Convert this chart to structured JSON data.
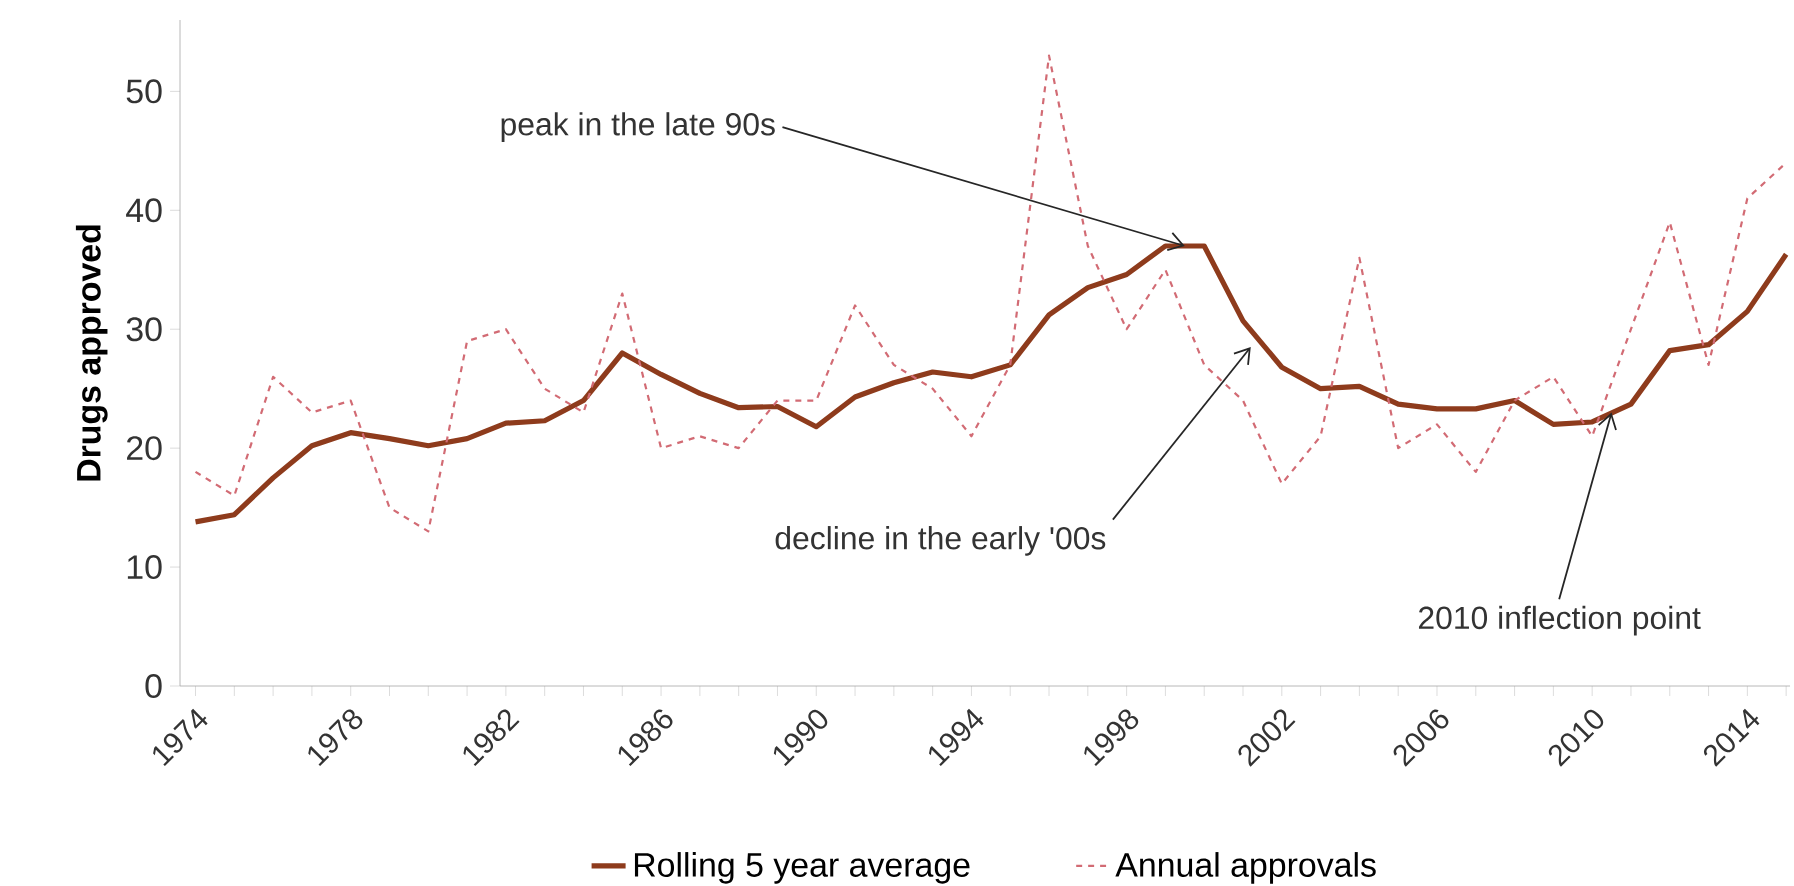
{
  "chart_data": {
    "type": "line",
    "ylabel": "Drugs approved",
    "legend": "bottom",
    "x": [
      1974,
      1975,
      1976,
      1977,
      1978,
      1979,
      1980,
      1981,
      1982,
      1983,
      1984,
      1985,
      1986,
      1987,
      1988,
      1989,
      1990,
      1991,
      1992,
      1993,
      1994,
      1995,
      1996,
      1997,
      1998,
      1999,
      2000,
      2001,
      2002,
      2003,
      2004,
      2005,
      2006,
      2007,
      2008,
      2009,
      2010,
      2011,
      2012,
      2013,
      2014,
      2015
    ],
    "series": [
      {
        "name": "Rolling 5 year average",
        "color": "#8e3b1c",
        "line_style": "solid",
        "values": [
          13.8,
          14.4,
          17.5,
          20.2,
          21.3,
          20.8,
          20.2,
          20.8,
          22.1,
          22.3,
          24,
          28,
          26.2,
          24.6,
          23.4,
          23.5,
          21.8,
          24.3,
          25.5,
          26.4,
          26,
          27,
          31.2,
          33.5,
          34.6,
          37,
          37,
          30.7,
          26.8,
          25,
          25.2,
          23.7,
          23.3,
          23.3,
          24,
          22,
          22.2,
          23.7,
          28.2,
          28.7,
          31.5,
          36.3
        ]
      },
      {
        "name": "Annual approvals",
        "color": "#d26b74",
        "line_style": "dashed",
        "values": [
          18,
          16,
          26,
          23,
          24,
          15,
          13,
          29,
          30,
          25,
          23,
          33,
          20,
          21,
          20,
          24,
          24,
          32,
          27,
          25,
          21,
          27,
          53,
          37,
          30,
          35,
          27,
          24,
          17,
          21,
          36,
          20,
          22,
          18,
          24,
          26,
          21,
          30,
          39,
          27,
          41,
          44
        ]
      }
    ],
    "xlim": [
      1973.6,
      2015.1
    ],
    "ylim": [
      0,
      56
    ],
    "xticks": [
      1974,
      {
        "value": 1975,
        "label": null
      },
      {
        "value": 1976,
        "label": null
      },
      {
        "value": 1977,
        "label": null
      },
      1978,
      {
        "value": 1979,
        "label": null
      },
      {
        "value": 1980,
        "label": null
      },
      {
        "value": 1981,
        "label": null
      },
      1982,
      {
        "value": 1983,
        "label": null
      },
      {
        "value": 1984,
        "label": null
      },
      {
        "value": 1985,
        "label": null
      },
      1986,
      {
        "value": 1987,
        "label": null
      },
      {
        "value": 1988,
        "label": null
      },
      {
        "value": 1989,
        "label": null
      },
      1990,
      {
        "value": 1991,
        "label": null
      },
      {
        "value": 1992,
        "label": null
      },
      {
        "value": 1993,
        "label": null
      },
      1994,
      {
        "value": 1995,
        "label": null
      },
      {
        "value": 1996,
        "label": null
      },
      {
        "value": 1997,
        "label": null
      },
      1998,
      {
        "value": 1999,
        "label": null
      },
      {
        "value": 2000,
        "label": null
      },
      {
        "value": 2001,
        "label": null
      },
      2002,
      {
        "value": 2003,
        "label": null
      },
      {
        "value": 2004,
        "label": null
      },
      {
        "value": 2005,
        "label": null
      },
      2006,
      {
        "value": 2007,
        "label": null
      },
      {
        "value": 2008,
        "label": null
      },
      {
        "value": 2009,
        "label": null
      },
      2010,
      {
        "value": 2011,
        "label": null
      },
      {
        "value": 2012,
        "label": null
      },
      {
        "value": 2013,
        "label": null
      },
      2014,
      {
        "value": 2015,
        "label": null
      }
    ],
    "yticks": [
      0,
      10,
      20,
      30,
      40,
      50
    ],
    "annotations": [
      {
        "text": "peak in the late 90s",
        "x": 1999.5,
        "y": 37
      },
      {
        "text": "decline in the early '00s",
        "x": 2001.2,
        "y": 28.5
      },
      {
        "text": "2010 inflection point",
        "x": 2010.5,
        "y": 23
      }
    ]
  }
}
